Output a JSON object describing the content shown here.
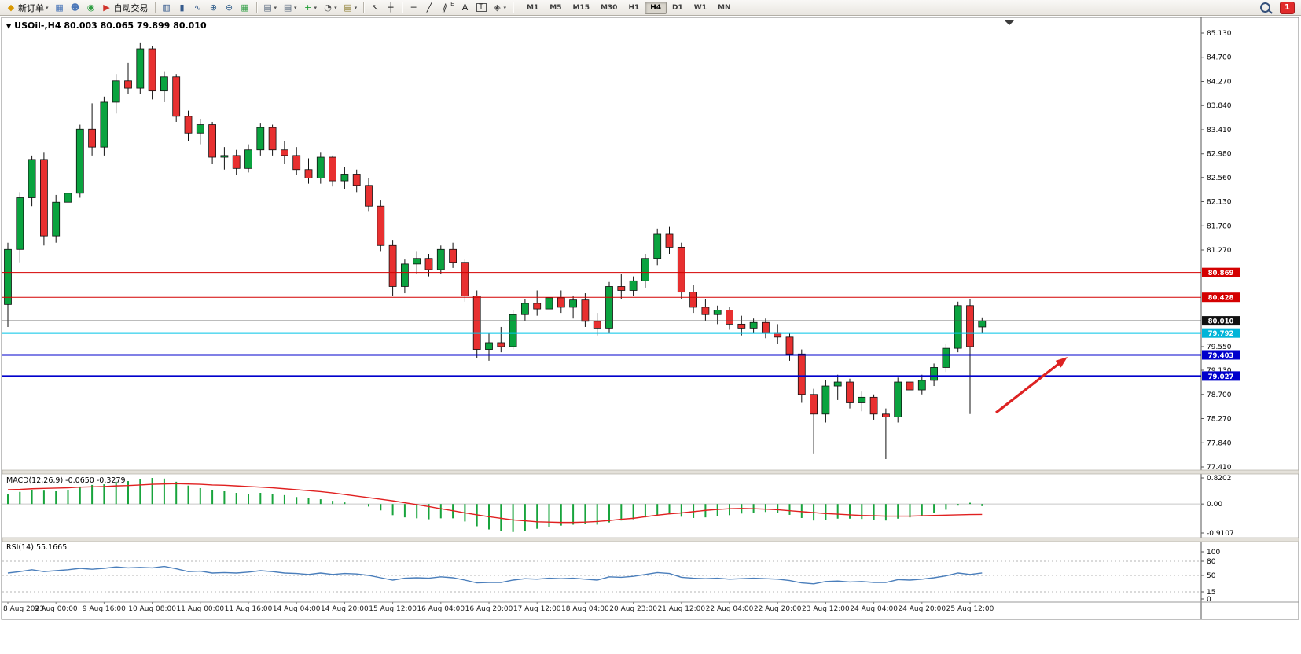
{
  "toolbar": {
    "new_order_label": "新订单",
    "auto_trading_label": "自动交易",
    "items": [
      {
        "name": "new-order-button",
        "icon": "◆",
        "icon_color": "#d99800",
        "label": "新订单",
        "dropdown": true
      },
      {
        "name": "charts-window-button",
        "icon": "▦",
        "icon_color": "#4a76b8"
      },
      {
        "name": "market-watch-button",
        "icon": "☻",
        "icon_color": "#4a76b8"
      },
      {
        "name": "navigator-button",
        "icon": "◉",
        "icon_color": "#2f9e44"
      },
      {
        "name": "auto-trading-button",
        "icon": "▶",
        "icon_color": "#d0342c",
        "label": "自动交易"
      },
      {
        "sep": true
      },
      {
        "name": "chart-bars-button",
        "icon": "▥",
        "icon_color": "#355a8c"
      },
      {
        "name": "chart-candles-button",
        "icon": "▮",
        "icon_color": "#355a8c"
      },
      {
        "name": "chart-line-button",
        "icon": "∿",
        "icon_color": "#355a8c"
      },
      {
        "name": "zoom-in-button",
        "icon": "⊕",
        "icon_color": "#35618c"
      },
      {
        "name": "zoom-out-button",
        "icon": "⊖",
        "icon_color": "#35618c"
      },
      {
        "name": "tile-windows-button",
        "icon": "▦",
        "icon_color": "#2f9e44"
      },
      {
        "sep": true
      },
      {
        "name": "indicators-list-button",
        "icon": "▤",
        "icon_color": "#5a6b80",
        "dropdown": true
      },
      {
        "name": "objects-list-button",
        "icon": "▤",
        "icon_color": "#5a6b80",
        "dropdown": true
      },
      {
        "name": "add-indicator-button",
        "icon": "+",
        "icon_color": "#1d9e33",
        "dropdown": true
      },
      {
        "name": "period-button",
        "icon": "◔",
        "icon_color": "#555555",
        "dropdown": true
      },
      {
        "name": "template-button",
        "icon": "▤",
        "icon_color": "#8a7a2a",
        "dropdown": true
      },
      {
        "sep": true
      },
      {
        "name": "cursor-button",
        "icon": "↖",
        "icon_color": "#222222"
      },
      {
        "name": "crosshair-button",
        "icon": "┼",
        "icon_color": "#222222"
      },
      {
        "sep": true
      },
      {
        "name": "hline-button",
        "icon": "─",
        "icon_color": "#222222"
      },
      {
        "name": "trendline-button",
        "icon": "╱",
        "icon_color": "#222222"
      },
      {
        "name": "channel-button",
        "icon": "∥",
        "icon_color": "#222222",
        "slant": true,
        "suffix": "E"
      },
      {
        "name": "text-button",
        "icon": "A",
        "icon_color": "#222222"
      },
      {
        "name": "label-button",
        "icon": "T",
        "icon_color": "#222222",
        "boxed": true
      },
      {
        "name": "shapes-button",
        "icon": "◈",
        "icon_color": "#444444",
        "dropdown": true
      },
      {
        "sep": true
      }
    ],
    "timeframes": [
      "M1",
      "M5",
      "M15",
      "M30",
      "H1",
      "H4",
      "D1",
      "W1",
      "MN"
    ],
    "active_timeframe": "H4",
    "notification_count": "1"
  },
  "chart": {
    "collapse_icon": "▼",
    "title_text": "USOil-,H4 80.003 80.065 79.899 80.010"
  },
  "chart_data": {
    "type": "candlestick",
    "symbol": "USOil-",
    "timeframe": "H4",
    "ohlc": {
      "open": "80.003",
      "high": "80.065",
      "low": "79.899",
      "close": "80.010"
    },
    "price_range": {
      "min": 77.41,
      "max": 85.13
    },
    "price_ticks": [
      "85.130",
      "84.700",
      "84.270",
      "83.840",
      "83.410",
      "82.980",
      "82.560",
      "82.130",
      "81.700",
      "81.270",
      "79.550",
      "79.130",
      "78.700",
      "78.270",
      "77.840",
      "77.410"
    ],
    "candles": [
      [
        80.3,
        81.4,
        79.9,
        81.28
      ],
      [
        81.28,
        82.3,
        81.05,
        82.2
      ],
      [
        82.2,
        82.95,
        82.05,
        82.88
      ],
      [
        82.88,
        83.0,
        81.35,
        81.52
      ],
      [
        81.52,
        82.25,
        81.4,
        82.12
      ],
      [
        82.12,
        82.4,
        81.9,
        82.28
      ],
      [
        82.28,
        83.5,
        82.2,
        83.42
      ],
      [
        83.42,
        83.88,
        82.95,
        83.1
      ],
      [
        83.1,
        84.0,
        82.95,
        83.9
      ],
      [
        83.9,
        84.4,
        83.7,
        84.28
      ],
      [
        84.28,
        84.6,
        84.05,
        84.15
      ],
      [
        84.15,
        84.95,
        84.05,
        84.85
      ],
      [
        84.85,
        84.9,
        83.95,
        84.1
      ],
      [
        84.1,
        84.45,
        83.9,
        84.35
      ],
      [
        84.35,
        84.4,
        83.55,
        83.65
      ],
      [
        83.65,
        83.75,
        83.2,
        83.35
      ],
      [
        83.35,
        83.6,
        83.15,
        83.5
      ],
      [
        83.5,
        83.55,
        82.8,
        82.92
      ],
      [
        82.92,
        83.1,
        82.7,
        82.95
      ],
      [
        82.95,
        83.05,
        82.6,
        82.72
      ],
      [
        82.72,
        83.15,
        82.65,
        83.05
      ],
      [
        83.05,
        83.52,
        82.95,
        83.45
      ],
      [
        83.45,
        83.5,
        82.95,
        83.05
      ],
      [
        83.05,
        83.2,
        82.8,
        82.95
      ],
      [
        82.95,
        83.1,
        82.6,
        82.7
      ],
      [
        82.7,
        82.9,
        82.45,
        82.55
      ],
      [
        82.55,
        83.0,
        82.45,
        82.92
      ],
      [
        82.92,
        82.95,
        82.4,
        82.5
      ],
      [
        82.5,
        82.75,
        82.35,
        82.62
      ],
      [
        82.62,
        82.7,
        82.3,
        82.42
      ],
      [
        82.42,
        82.55,
        81.95,
        82.05
      ],
      [
        82.05,
        82.15,
        81.25,
        81.35
      ],
      [
        81.35,
        81.45,
        80.45,
        80.62
      ],
      [
        80.62,
        81.1,
        80.5,
        81.02
      ],
      [
        81.02,
        81.25,
        80.85,
        81.12
      ],
      [
        81.12,
        81.2,
        80.8,
        80.92
      ],
      [
        80.92,
        81.35,
        80.85,
        81.28
      ],
      [
        81.28,
        81.4,
        80.95,
        81.05
      ],
      [
        81.05,
        81.1,
        80.35,
        80.45
      ],
      [
        80.45,
        80.55,
        79.35,
        79.5
      ],
      [
        79.5,
        79.8,
        79.3,
        79.62
      ],
      [
        79.62,
        79.9,
        79.45,
        79.55
      ],
      [
        79.55,
        80.2,
        79.5,
        80.12
      ],
      [
        80.12,
        80.4,
        80.0,
        80.32
      ],
      [
        80.32,
        80.55,
        80.1,
        80.22
      ],
      [
        80.22,
        80.5,
        80.05,
        80.42
      ],
      [
        80.42,
        80.55,
        80.15,
        80.25
      ],
      [
        80.25,
        80.45,
        80.05,
        80.38
      ],
      [
        80.38,
        80.5,
        79.9,
        80.0
      ],
      [
        80.0,
        80.15,
        79.75,
        79.88
      ],
      [
        79.88,
        80.7,
        79.8,
        80.62
      ],
      [
        80.62,
        80.85,
        80.4,
        80.55
      ],
      [
        80.55,
        80.8,
        80.45,
        80.72
      ],
      [
        80.72,
        81.2,
        80.6,
        81.12
      ],
      [
        81.12,
        81.65,
        81.0,
        81.55
      ],
      [
        81.55,
        81.68,
        81.2,
        81.32
      ],
      [
        81.32,
        81.4,
        80.4,
        80.52
      ],
      [
        80.52,
        80.65,
        80.15,
        80.25
      ],
      [
        80.25,
        80.4,
        80.0,
        80.12
      ],
      [
        80.12,
        80.28,
        79.95,
        80.2
      ],
      [
        80.2,
        80.25,
        79.85,
        79.95
      ],
      [
        79.95,
        80.1,
        79.75,
        79.88
      ],
      [
        79.88,
        80.05,
        79.8,
        79.98
      ],
      [
        79.98,
        80.05,
        79.7,
        79.8
      ],
      [
        79.8,
        79.95,
        79.6,
        79.72
      ],
      [
        79.72,
        79.8,
        79.3,
        79.42
      ],
      [
        79.42,
        79.5,
        78.55,
        78.7
      ],
      [
        78.7,
        78.8,
        77.65,
        78.35
      ],
      [
        78.35,
        78.95,
        78.2,
        78.85
      ],
      [
        78.85,
        79.05,
        78.6,
        78.92
      ],
      [
        78.92,
        78.98,
        78.45,
        78.55
      ],
      [
        78.55,
        78.75,
        78.4,
        78.65
      ],
      [
        78.65,
        78.7,
        78.25,
        78.35
      ],
      [
        78.35,
        78.45,
        77.55,
        78.3
      ],
      [
        78.3,
        79.0,
        78.2,
        78.92
      ],
      [
        78.92,
        79.0,
        78.65,
        78.78
      ],
      [
        78.78,
        79.05,
        78.7,
        78.95
      ],
      [
        78.95,
        79.25,
        78.85,
        79.18
      ],
      [
        79.18,
        79.6,
        79.1,
        79.52
      ],
      [
        79.52,
        80.35,
        79.45,
        80.28
      ],
      [
        80.28,
        80.4,
        78.35,
        79.55
      ],
      [
        79.9,
        80.07,
        79.8,
        80.01
      ]
    ],
    "time_labels": [
      "8 Aug 2023",
      "9 Aug 00:00",
      "9 Aug 16:00",
      "10 Aug 08:00",
      "11 Aug 00:00",
      "11 Aug 16:00",
      "14 Aug 04:00",
      "14 Aug 20:00",
      "15 Aug 12:00",
      "16 Aug 04:00",
      "16 Aug 20:00",
      "17 Aug 12:00",
      "18 Aug 04:00",
      "20 Aug 23:00",
      "21 Aug 12:00",
      "22 Aug 04:00",
      "22 Aug 20:00",
      "23 Aug 12:00",
      "24 Aug 04:00",
      "24 Aug 20:00",
      "25 Aug 12:00"
    ],
    "label_every": 4,
    "price_lines": [
      {
        "price": 80.869,
        "label": "80.869",
        "line_color": "#d40000",
        "label_bg": "#d40000",
        "width": 1
      },
      {
        "price": 80.428,
        "label": "80.428",
        "line_color": "#d40000",
        "label_bg": "#d40000",
        "width": 1
      },
      {
        "price": 80.01,
        "label": "80.010",
        "line_color": "#4d4d4d",
        "label_bg": "#111111",
        "width": 1
      },
      {
        "price": 79.792,
        "label": "79.792",
        "line_color": "#00c4e8",
        "label_bg": "#00b4d8",
        "width": 2
      },
      {
        "price": 79.403,
        "label": "79.403",
        "line_color": "#0000cc",
        "label_bg": "#0000cc",
        "width": 2
      },
      {
        "price": 79.027,
        "label": "79.027",
        "line_color": "#0000cc",
        "label_bg": "#0000cc",
        "width": 2
      }
    ],
    "macd": {
      "header": "MACD(12,26,9) -0.0650 -0.3279",
      "range": [
        -0.9107,
        0.8202
      ],
      "scale_labels": [
        "0.8202",
        "0.00",
        "-0.9107"
      ],
      "histogram": [
        0.3,
        0.38,
        0.45,
        0.42,
        0.4,
        0.45,
        0.55,
        0.6,
        0.62,
        0.7,
        0.72,
        0.78,
        0.82,
        0.8,
        0.7,
        0.58,
        0.5,
        0.44,
        0.4,
        0.35,
        0.32,
        0.35,
        0.32,
        0.28,
        0.22,
        0.18,
        0.15,
        0.1,
        0.05,
        0.0,
        -0.08,
        -0.2,
        -0.35,
        -0.42,
        -0.45,
        -0.48,
        -0.45,
        -0.45,
        -0.55,
        -0.7,
        -0.8,
        -0.85,
        -0.88,
        -0.85,
        -0.78,
        -0.72,
        -0.68,
        -0.65,
        -0.62,
        -0.65,
        -0.58,
        -0.52,
        -0.48,
        -0.42,
        -0.35,
        -0.32,
        -0.4,
        -0.44,
        -0.42,
        -0.38,
        -0.35,
        -0.3,
        -0.28,
        -0.25,
        -0.28,
        -0.34,
        -0.44,
        -0.52,
        -0.5,
        -0.46,
        -0.46,
        -0.47,
        -0.5,
        -0.52,
        -0.46,
        -0.42,
        -0.36,
        -0.28,
        -0.18,
        -0.05,
        0.04,
        -0.065
      ],
      "signal": [
        0.45,
        0.46,
        0.48,
        0.49,
        0.5,
        0.51,
        0.53,
        0.54,
        0.55,
        0.57,
        0.58,
        0.6,
        0.62,
        0.63,
        0.64,
        0.63,
        0.62,
        0.6,
        0.59,
        0.57,
        0.55,
        0.53,
        0.51,
        0.48,
        0.45,
        0.42,
        0.39,
        0.35,
        0.3,
        0.25,
        0.2,
        0.15,
        0.1,
        0.04,
        -0.02,
        -0.08,
        -0.15,
        -0.21,
        -0.28,
        -0.34,
        -0.4,
        -0.45,
        -0.5,
        -0.53,
        -0.56,
        -0.57,
        -0.58,
        -0.58,
        -0.57,
        -0.55,
        -0.52,
        -0.48,
        -0.45,
        -0.4,
        -0.35,
        -0.31,
        -0.28,
        -0.24,
        -0.2,
        -0.17,
        -0.15,
        -0.14,
        -0.15,
        -0.16,
        -0.18,
        -0.21,
        -0.24,
        -0.27,
        -0.3,
        -0.32,
        -0.34,
        -0.36,
        -0.37,
        -0.38,
        -0.38,
        -0.38,
        -0.37,
        -0.36,
        -0.35,
        -0.34,
        -0.33,
        -0.3279
      ]
    },
    "rsi": {
      "header": "RSI(14) 55.1665",
      "scale_labels": [
        "100",
        "80",
        "50",
        "15",
        "0"
      ],
      "levels": [
        80,
        50,
        15
      ],
      "values": [
        55,
        58,
        62,
        58,
        60,
        62,
        65,
        63,
        65,
        68,
        66,
        67,
        66,
        69,
        64,
        58,
        59,
        55,
        56,
        55,
        57,
        60,
        58,
        55,
        54,
        52,
        55,
        52,
        54,
        53,
        50,
        45,
        40,
        44,
        45,
        44,
        47,
        45,
        40,
        34,
        35,
        35,
        40,
        43,
        42,
        44,
        43,
        44,
        42,
        40,
        47,
        46,
        48,
        52,
        56,
        54,
        46,
        44,
        43,
        44,
        42,
        43,
        44,
        43,
        42,
        39,
        34,
        32,
        37,
        38,
        36,
        37,
        35,
        35,
        41,
        40,
        42,
        45,
        49,
        55,
        52,
        55.17
      ]
    },
    "arrow": {
      "from": [
        1267,
        505
      ],
      "to": [
        1358,
        434
      ],
      "color": "#dd2222"
    },
    "colors": {
      "up": "#0aa33f",
      "down": "#e83030",
      "macd_hist": "#18a43c",
      "macd_signal": "#e02020",
      "rsi_line": "#4a7ebb",
      "outline": "#111111"
    }
  }
}
